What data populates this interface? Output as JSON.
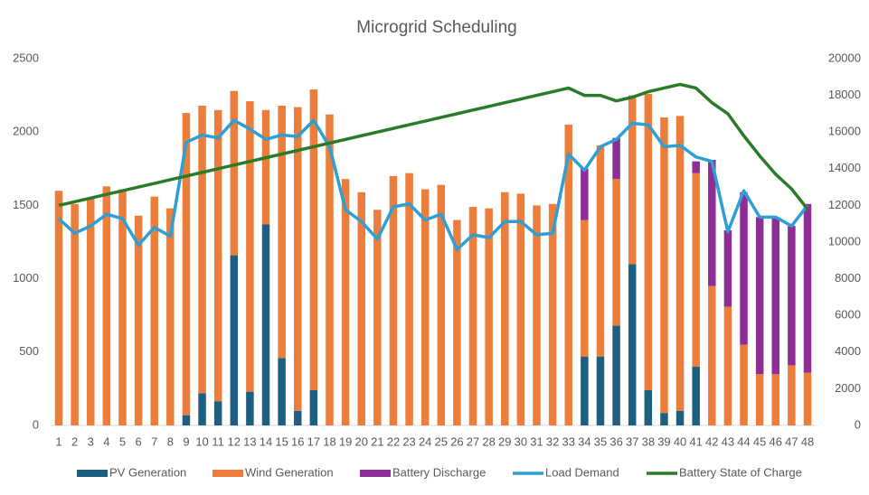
{
  "chart_data": {
    "type": "bar",
    "title": "Microgrid Scheduling",
    "categories": [
      1,
      2,
      3,
      4,
      5,
      6,
      7,
      8,
      9,
      10,
      11,
      12,
      13,
      14,
      15,
      16,
      17,
      18,
      19,
      20,
      21,
      22,
      23,
      24,
      25,
      26,
      27,
      28,
      29,
      30,
      31,
      32,
      33,
      34,
      35,
      36,
      37,
      38,
      39,
      40,
      41,
      42,
      43,
      44,
      45,
      46,
      47,
      48
    ],
    "ylim": [
      0,
      2500
    ],
    "yticks": [
      0,
      500,
      1000,
      1500,
      2000,
      2500
    ],
    "y2lim": [
      0,
      20000
    ],
    "y2ticks": [
      0,
      2000,
      4000,
      6000,
      8000,
      10000,
      12000,
      14000,
      16000,
      18000,
      20000
    ],
    "grid": false,
    "stacked": true,
    "legend": "bottom",
    "series": [
      {
        "name": "PV Generation",
        "type": "bar",
        "color": "#1d5f80",
        "values": [
          0,
          0,
          0,
          0,
          0,
          0,
          0,
          0,
          70,
          220,
          165,
          1160,
          230,
          1370,
          460,
          100,
          240,
          0,
          0,
          0,
          0,
          0,
          0,
          0,
          0,
          0,
          0,
          0,
          0,
          0,
          0,
          0,
          0,
          470,
          470,
          680,
          1100,
          240,
          85,
          100,
          400,
          0,
          0,
          0,
          0,
          0,
          0,
          0
        ]
      },
      {
        "name": "Wind Generation",
        "type": "bar",
        "color": "#ec7d3a",
        "values": [
          1600,
          1510,
          1550,
          1630,
          1610,
          1430,
          1560,
          1480,
          2060,
          1960,
          1985,
          1120,
          1980,
          780,
          1720,
          2070,
          2050,
          2120,
          1680,
          1590,
          1470,
          1700,
          1720,
          1610,
          1640,
          1400,
          1490,
          1480,
          1590,
          1580,
          1500,
          1510,
          2050,
          930,
          1440,
          1000,
          1150,
          2020,
          2015,
          2010,
          1320,
          950,
          810,
          550,
          350,
          350,
          410,
          360
        ]
      },
      {
        "name": "Battery Discharge",
        "type": "bar",
        "color": "#8e2d96",
        "values": [
          0,
          0,
          0,
          0,
          0,
          0,
          0,
          0,
          0,
          0,
          0,
          0,
          0,
          0,
          0,
          0,
          0,
          0,
          0,
          0,
          0,
          0,
          0,
          0,
          0,
          0,
          0,
          0,
          0,
          0,
          0,
          0,
          0,
          350,
          0,
          280,
          0,
          0,
          0,
          0,
          80,
          860,
          520,
          1040,
          1070,
          1070,
          950,
          1150
        ]
      },
      {
        "name": "Load Demand",
        "type": "line",
        "color": "#2e9fd4",
        "values": [
          1410,
          1310,
          1360,
          1440,
          1410,
          1230,
          1350,
          1290,
          1930,
          1980,
          1960,
          2080,
          2020,
          1950,
          1980,
          1970,
          2080,
          1900,
          1470,
          1390,
          1270,
          1490,
          1510,
          1400,
          1440,
          1200,
          1300,
          1280,
          1390,
          1390,
          1300,
          1310,
          1850,
          1740,
          1900,
          1950,
          2060,
          2050,
          1900,
          1910,
          1830,
          1800,
          1320,
          1600,
          1420,
          1420,
          1360,
          1500
        ]
      },
      {
        "name": "Battery State of Charge",
        "type": "line",
        "axis": "y2",
        "color": "#2a7a2a",
        "values": [
          12000,
          12200,
          12400,
          12600,
          12800,
          13000,
          13200,
          13400,
          13600,
          13800,
          14000,
          14200,
          14400,
          14600,
          14800,
          15000,
          15200,
          15400,
          15600,
          15800,
          16000,
          16200,
          16400,
          16600,
          16800,
          17000,
          17200,
          17400,
          17600,
          17800,
          18000,
          18200,
          18400,
          18000,
          18000,
          17700,
          17900,
          18200,
          18400,
          18600,
          18400,
          17600,
          17000,
          15800,
          14700,
          13700,
          12900,
          11800
        ]
      }
    ]
  }
}
